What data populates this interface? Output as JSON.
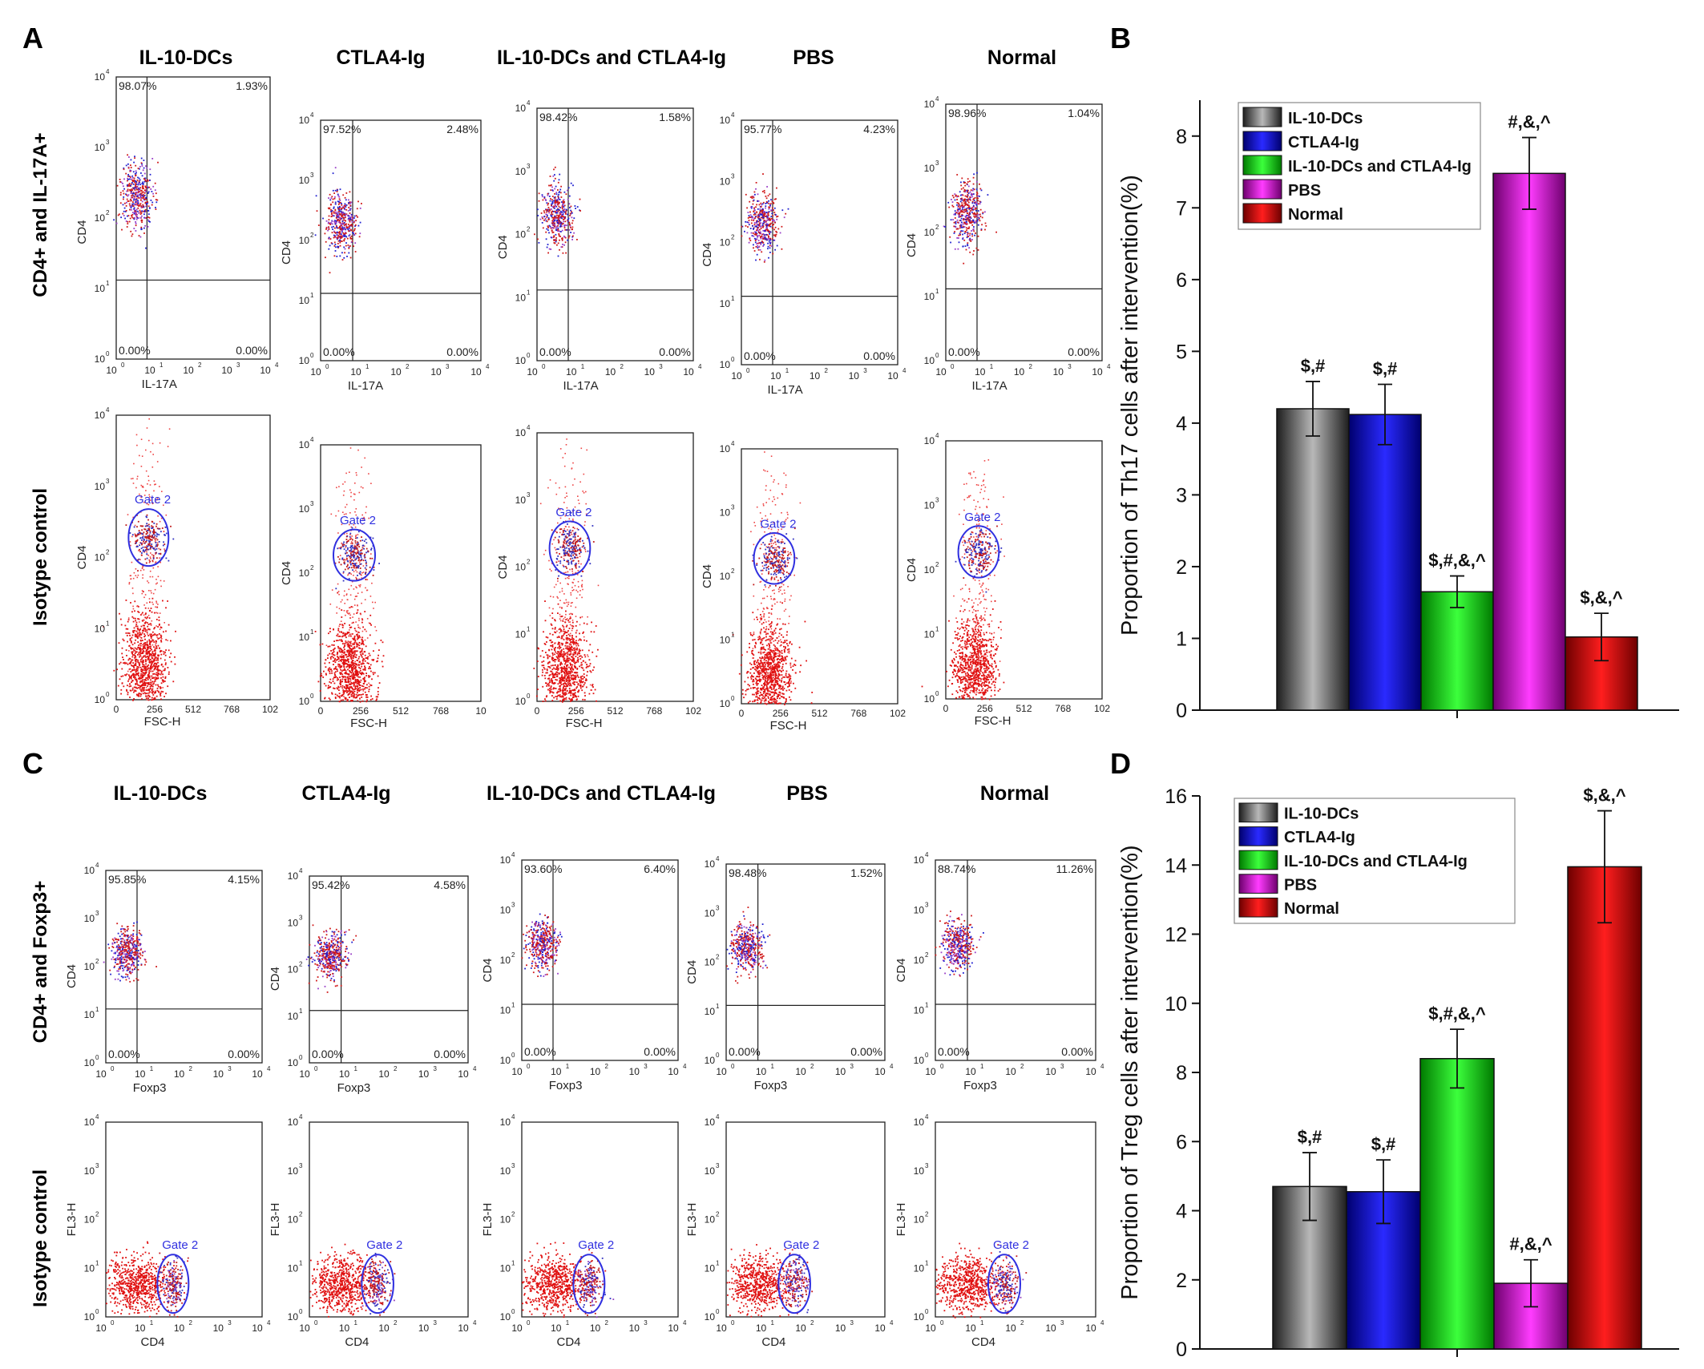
{
  "groups": [
    "IL-10-DCs",
    "CTLA4-Ig",
    "IL-10-DCs and CTLA4-Ig",
    "PBS",
    "Normal"
  ],
  "group_colors": [
    "#3a3a3a",
    "#1414c8",
    "#14d214",
    "#c814c8",
    "#c80a0a"
  ],
  "panels": {
    "A": {
      "letter": "A",
      "row_labels": [
        "CD4+ and IL-17A+",
        "Isotype control"
      ],
      "quadrant_row": {
        "x_label": "IL-17A",
        "y_label": "CD4",
        "quadrants": [
          {
            "ul": "98.07%",
            "ur": "1.93%",
            "ll": "0.00%",
            "lr": "0.00%"
          },
          {
            "ul": "97.52%",
            "ur": "2.48%",
            "ll": "0.00%",
            "lr": "0.00%"
          },
          {
            "ul": "98.42%",
            "ur": "1.58%",
            "ll": "0.00%",
            "lr": "0.00%"
          },
          {
            "ul": "95.77%",
            "ur": "4.23%",
            "ll": "0.00%",
            "lr": "0.00%"
          },
          {
            "ul": "98.96%",
            "ur": "1.04%",
            "ll": "0.00%",
            "lr": "0.00%"
          }
        ]
      },
      "gate_row": {
        "x_label": "FSC-H",
        "y_label": "CD4",
        "gate_label": "Gate 2",
        "x_ticks": [
          [
            "0",
            "256",
            "512",
            "768",
            "102"
          ],
          [
            "0",
            "256",
            "512",
            "768",
            "10"
          ],
          [
            "0",
            "256",
            "512",
            "768",
            "102"
          ],
          [
            "0",
            "256",
            "512",
            "768",
            "102"
          ],
          [
            "0",
            "256",
            "512",
            "768",
            "102"
          ]
        ]
      }
    },
    "C": {
      "letter": "C",
      "row_labels": [
        "CD4+ and Foxp3+",
        "Isotype control"
      ],
      "quadrant_row": {
        "x_label": "Foxp3",
        "y_label": "CD4",
        "quadrants": [
          {
            "ul": "95.85%",
            "ur": "4.15%",
            "ll": "0.00%",
            "lr": "0.00%"
          },
          {
            "ul": "95.42%",
            "ur": "4.58%",
            "ll": "0.00%",
            "lr": "0.00%"
          },
          {
            "ul": "93.60%",
            "ur": "6.40%",
            "ll": "0.00%",
            "lr": "0.00%"
          },
          {
            "ul": "98.48%",
            "ur": "1.52%",
            "ll": "0.00%",
            "lr": "0.00%"
          },
          {
            "ul": "88.74%",
            "ur": "11.26%",
            "ll": "0.00%",
            "lr": "0.00%"
          }
        ]
      },
      "gate_row": {
        "x_label": "CD4",
        "y_label": "FL3-H",
        "gate_label": "Gate 2"
      }
    }
  },
  "log_tick_labels": [
    "10",
    "10",
    "10",
    "10",
    "10"
  ],
  "log_tick_exponents": [
    "0",
    "1",
    "2",
    "3",
    "4"
  ],
  "chart_data": [
    {
      "panel": "B",
      "type": "bar",
      "categories": [
        "IL-10-DCs",
        "CTLA4-Ig",
        "IL-10-DCs and CTLA4-Ig",
        "PBS",
        "Normal"
      ],
      "values": [
        4.2,
        4.12,
        1.65,
        7.48,
        1.02
      ],
      "errors": [
        0.38,
        0.42,
        0.22,
        0.5,
        0.33
      ],
      "annotations": [
        "$,#",
        "$,#",
        "$,#,&,^",
        "#,&,^",
        "$,&,^"
      ],
      "ylabel": "Proportion of Th17 cells after intervention(%)",
      "xlabel": "",
      "ylim": [
        0,
        8.5
      ],
      "yticks": [
        0,
        1,
        2,
        3,
        4,
        5,
        6,
        7,
        8
      ],
      "legend_position": "top-left"
    },
    {
      "panel": "D",
      "type": "bar",
      "categories": [
        "IL-10-DCs",
        "CTLA4-Ig",
        "IL-10-DCs and CTLA4-Ig",
        "PBS",
        "Normal"
      ],
      "values": [
        4.7,
        4.55,
        8.4,
        1.9,
        13.95
      ],
      "errors": [
        0.98,
        0.92,
        0.85,
        0.68,
        1.62
      ],
      "annotations": [
        "$,#",
        "$,#",
        "$,#,&,^",
        "#,&,^",
        "$,&,^"
      ],
      "ylabel": "Proportion of Treg cells after intervention(%)",
      "xlabel": "",
      "ylim": [
        0,
        16
      ],
      "yticks": [
        0,
        2,
        4,
        6,
        8,
        10,
        12,
        14,
        16
      ],
      "legend_position": "top-left"
    }
  ]
}
